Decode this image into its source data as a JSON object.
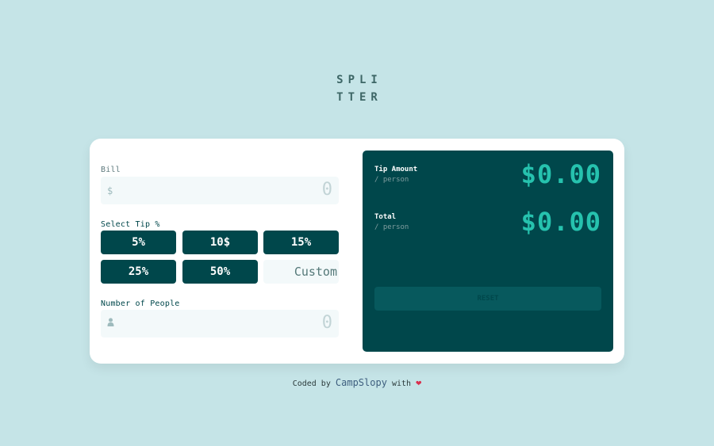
{
  "logo": {
    "line1": "SPLI",
    "line2": "TTER"
  },
  "bill": {
    "label": "Bill",
    "prefix": "$",
    "value": "0"
  },
  "tip": {
    "label": "Select Tip %",
    "options": [
      "5%",
      "10$",
      "15%",
      "25%",
      "50%"
    ],
    "custom_placeholder": "Custom"
  },
  "people": {
    "label": "Number of People",
    "value": "0"
  },
  "results": {
    "tip_title": "Tip Amount",
    "tip_sub": "/ person",
    "tip_value": "$0.00",
    "total_title": "Total",
    "total_sub": "/ person",
    "total_value": "$0.00",
    "reset_label": "RESET"
  },
  "footer": {
    "prefix": "Coded by",
    "author": "CampSlopy",
    "suffix": "with"
  },
  "colors": {
    "background": "#c5e4e7",
    "dark_cyan": "#00474b",
    "accent": "#26c2ae",
    "heart": "#d9304e"
  }
}
